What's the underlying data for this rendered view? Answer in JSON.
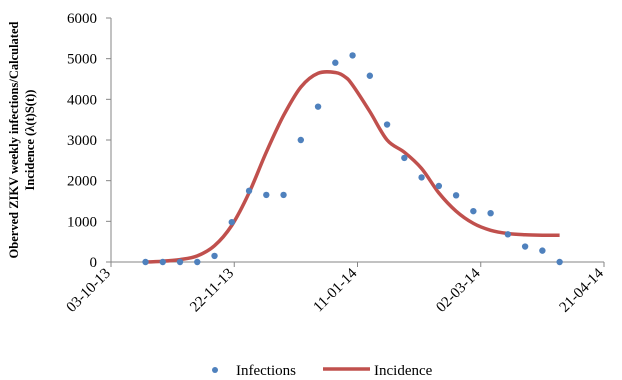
{
  "chart_data": {
    "type": "scatter",
    "title": "",
    "ylabel_line1": "Oberved ZIKV weekly  infections/Calculated",
    "ylabel_line2": "Incidence (λ(t)S(t))",
    "xlabel": "",
    "ylim": [
      0,
      6000
    ],
    "y_ticks": [
      0,
      1000,
      2000,
      3000,
      4000,
      5000,
      6000
    ],
    "y_tick_labels": [
      "0",
      "1000",
      "2000",
      "3000",
      "4000",
      "5000",
      "6000"
    ],
    "x_tick_labels": [
      "03-10-13",
      "22-11-13",
      "11-01-14",
      "02-03-14",
      "21-04-14"
    ],
    "x_ticks_iso": [
      "2013-10-03",
      "2013-11-22",
      "2014-01-11",
      "2014-03-02",
      "2014-04-21"
    ],
    "grid": false,
    "legend_position": "bottom",
    "series": [
      {
        "name": "Infections",
        "kind": "points",
        "color": "#4f81bd",
        "x": [
          "2013-10-17",
          "2013-10-24",
          "2013-10-31",
          "2013-11-07",
          "2013-11-14",
          "2013-11-21",
          "2013-11-28",
          "2013-12-05",
          "2013-12-12",
          "2013-12-19",
          "2013-12-26",
          "2014-01-02",
          "2014-01-09",
          "2014-01-16",
          "2014-01-23",
          "2014-01-30",
          "2014-02-06",
          "2014-02-13",
          "2014-02-20",
          "2014-02-27",
          "2014-03-06",
          "2014-03-13",
          "2014-03-20",
          "2014-03-27",
          "2014-04-03"
        ],
        "values": [
          0,
          0,
          0,
          0,
          150,
          980,
          1750,
          1650,
          1650,
          3000,
          3820,
          4900,
          5080,
          4580,
          3380,
          2560,
          2080,
          1870,
          1640,
          1250,
          1200,
          680,
          380,
          280,
          0
        ]
      },
      {
        "name": "Incidence",
        "kind": "line",
        "color": "#c0504d",
        "x": [
          "2013-10-17",
          "2013-10-24",
          "2013-10-31",
          "2013-11-07",
          "2013-11-14",
          "2013-11-21",
          "2013-11-28",
          "2013-12-05",
          "2013-12-12",
          "2013-12-19",
          "2013-12-26",
          "2014-01-02",
          "2014-01-06",
          "2014-01-09",
          "2014-01-16",
          "2014-01-23",
          "2014-01-30",
          "2014-02-06",
          "2014-02-13",
          "2014-02-20",
          "2014-02-27",
          "2014-03-06",
          "2014-03-13",
          "2014-03-20",
          "2014-03-27",
          "2014-04-03"
        ],
        "values": [
          0,
          20,
          60,
          150,
          400,
          900,
          1700,
          2700,
          3600,
          4300,
          4640,
          4660,
          4550,
          4350,
          3700,
          3000,
          2700,
          2300,
          1700,
          1250,
          950,
          780,
          700,
          670,
          660,
          660
        ]
      }
    ]
  }
}
